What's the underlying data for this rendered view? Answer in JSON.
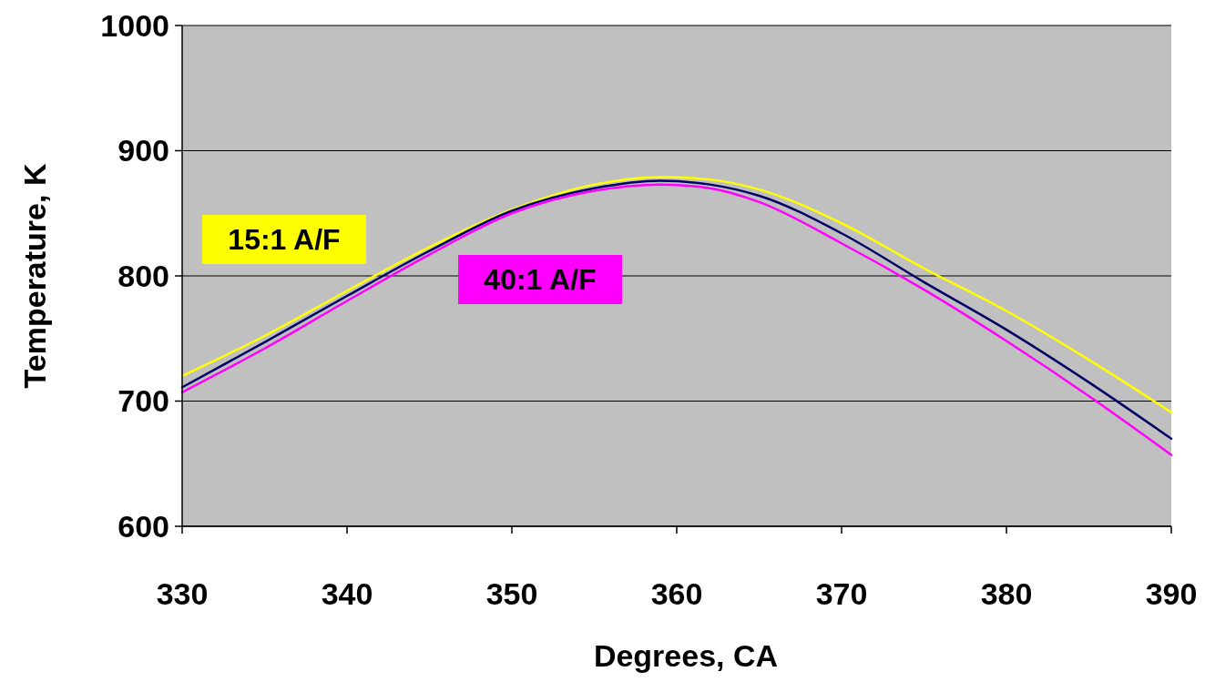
{
  "chart_data": {
    "type": "line",
    "xlabel": "Degrees, CA",
    "ylabel": "Temperature, K",
    "xlim": [
      330,
      390
    ],
    "xticks": [
      330,
      340,
      350,
      360,
      370,
      380,
      390
    ],
    "ylim": [
      600,
      1000
    ],
    "yticks": [
      600,
      700,
      800,
      900,
      1000
    ],
    "grid": "y",
    "marker": "none",
    "line_style": "solid",
    "x": [
      330,
      335,
      340,
      345,
      350,
      355,
      359,
      362,
      365,
      370,
      375,
      380,
      385,
      390
    ],
    "series": [
      {
        "name": "15:1 A/F",
        "color": "#ffff00",
        "values": [
          720,
          752,
          788,
          823,
          853,
          873,
          879,
          877,
          869,
          842,
          806,
          772,
          733,
          691
        ]
      },
      {
        "color": "#000066",
        "values": [
          711,
          747,
          784,
          820,
          852,
          870,
          876,
          873,
          864,
          834,
          795,
          757,
          715,
          670
        ]
      },
      {
        "name": "40:1 A/F",
        "color": "#ff00ff",
        "values": [
          707,
          742,
          780,
          817,
          850,
          868,
          873,
          870,
          859,
          826,
          789,
          748,
          704,
          657
        ]
      }
    ]
  }
}
